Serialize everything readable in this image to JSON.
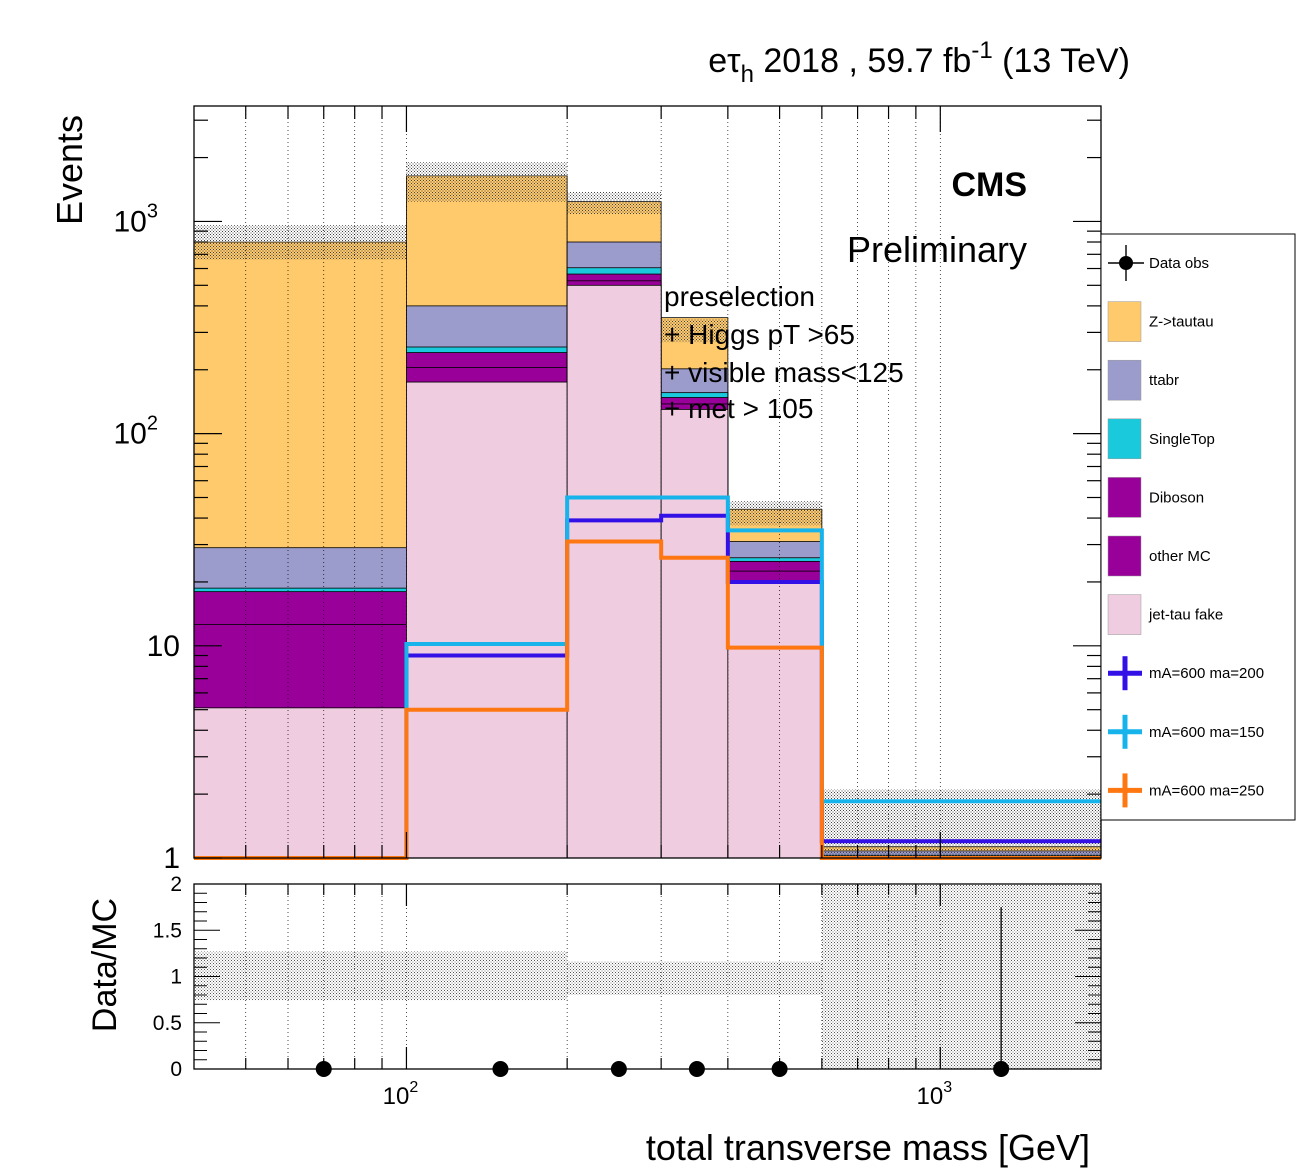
{
  "header": {
    "channel_e": "e",
    "channel_tau": "τ",
    "channel_sub": "h",
    "year": " 2018 , 59.7 fb",
    "lumi_exp": "-1",
    "energy": " (13 TeV)"
  },
  "labels": {
    "cms": "CMS",
    "preliminary": "Preliminary",
    "selection": [
      "preselection",
      "+ Higgs pT >65",
      "+ visible mass<125",
      "+ met > 105"
    ]
  },
  "chart_data": [
    {
      "type": "bar",
      "subtype": "stacked-step-histogram",
      "log_x": true,
      "log_y": true,
      "xlim": [
        40,
        2000
      ],
      "ylim": [
        1,
        3500
      ],
      "ylabel": "Events",
      "y_ticks": [
        {
          "value": 1,
          "label": "1"
        },
        {
          "value": 10,
          "label": "10"
        },
        {
          "value": 100,
          "label": "10",
          "exp": "2"
        },
        {
          "value": 1000,
          "label": "10",
          "exp": "3"
        }
      ],
      "bin_edges": [
        40,
        100,
        200,
        300,
        400,
        600,
        2000
      ],
      "stack": [
        {
          "name": "jet-tau fake",
          "color": "#f0cce1",
          "values": [
            5.1,
            175,
            500,
            130,
            20,
            1
          ]
        },
        {
          "name": "other MC",
          "color": "#990099",
          "values": [
            7.5,
            30,
            25,
            8,
            2.5,
            0.01
          ]
        },
        {
          "name": "Diboson",
          "color": "#990099",
          "values": [
            5.4,
            36,
            40,
            10,
            2.5,
            0.01
          ]
        },
        {
          "name": "SingleTop",
          "color": "#1ac9dc",
          "values": [
            0.7,
            15,
            40,
            8,
            1,
            0.01
          ]
        },
        {
          "name": "ttabr",
          "color": "#9b9bcc",
          "values": [
            10.3,
            144,
            195,
            46,
            5,
            0.05
          ]
        },
        {
          "name": "Z->tautau",
          "color": "#ffca6b",
          "values": [
            770,
            1240,
            440,
            150,
            13,
            0.05
          ]
        }
      ],
      "uncertainty_band": {
        "up": [
          960,
          1900,
          1380,
          345,
          48,
          2.1
        ],
        "down": [
          660,
          1240,
          1080,
          270,
          37,
          1.0
        ]
      },
      "signals": [
        {
          "name": "mA=600 ma=200",
          "color": "#3311e6",
          "values": [
            1,
            9,
            39,
            41,
            20,
            1.2
          ]
        },
        {
          "name": "mA=600 ma=150",
          "color": "#17b4ec",
          "values": [
            1,
            10.2,
            50,
            50,
            35,
            1.85
          ]
        },
        {
          "name": "mA=600 ma=250",
          "color": "#ff7711",
          "values": [
            1,
            5,
            31,
            26,
            9.8,
            1
          ]
        }
      ],
      "data_obs": {
        "name": "Data obs"
      },
      "legend": {
        "position": "right",
        "entries": [
          "Data obs",
          "Z->tautau",
          "ttabr",
          "SingleTop",
          "Diboson",
          "other MC",
          "jet-tau fake",
          "mA=600 ma=200",
          "mA=600 ma=150",
          "mA=600 ma=250"
        ]
      }
    },
    {
      "type": "scatter",
      "subtype": "ratio",
      "log_x": true,
      "xlim": [
        40,
        2000
      ],
      "ylim": [
        0,
        2
      ],
      "ylabel": "Data/MC",
      "xlabel": "total transverse mass [GeV]",
      "y_ticks": [
        "0",
        "0.5",
        "1",
        "1.5",
        "2"
      ],
      "x_ticks": [
        {
          "value": 100,
          "label": "10",
          "exp": "2"
        },
        {
          "value": 1000,
          "label": "10",
          "exp": "3"
        }
      ],
      "points": [
        {
          "x": 70,
          "y": 0
        },
        {
          "x": 150,
          "y": 0
        },
        {
          "x": 250,
          "y": 0
        },
        {
          "x": 350,
          "y": 0
        },
        {
          "x": 500,
          "y": 0
        },
        {
          "x": 1300,
          "y": 0,
          "err_up": 1.75
        }
      ],
      "band": [
        {
          "lo": 0.74,
          "hi": 1.27
        },
        {
          "lo": 0.74,
          "hi": 1.27
        },
        {
          "lo": 0.8,
          "hi": 1.16
        },
        {
          "lo": 0.8,
          "hi": 1.16
        },
        {
          "lo": 0.8,
          "hi": 1.16
        },
        {
          "lo": 0,
          "hi": 2
        }
      ]
    }
  ]
}
